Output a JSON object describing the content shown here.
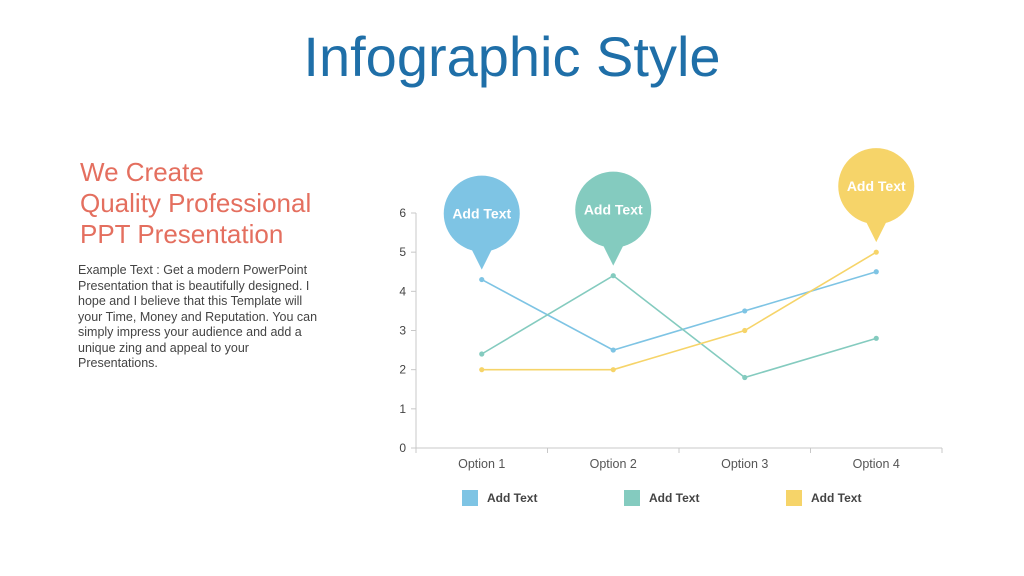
{
  "slide": {
    "title": "Infographic Style",
    "headline_lines": [
      "We Create",
      "Quality Professional",
      "PPT Presentation"
    ],
    "body": "Example Text : Get a modern PowerPoint Presentation that is beautifully designed. I hope and I believe that this Template will your Time, Money and Reputation. You can simply impress your audience and add a unique zing and appeal to your Presentations."
  },
  "chart_data": {
    "type": "line",
    "categories": [
      "Option 1",
      "Option 2",
      "Option 3",
      "Option 4"
    ],
    "ylim": [
      0,
      6
    ],
    "yticks": [
      0,
      1,
      2,
      3,
      4,
      5,
      6
    ],
    "grid": false,
    "legend_position": "bottom",
    "series": [
      {
        "name": "Add Text",
        "color": "#7ec4e4",
        "values": [
          4.3,
          2.5,
          3.5,
          4.5
        ]
      },
      {
        "name": "Add Text",
        "color": "#84cbbf",
        "values": [
          2.4,
          4.4,
          1.8,
          2.8
        ]
      },
      {
        "name": "Add Text",
        "color": "#f6d469",
        "values": [
          2.0,
          2.0,
          3.0,
          5.0
        ]
      }
    ],
    "callouts": [
      {
        "text": "Add Text",
        "color": "#7ec4e4",
        "series": 0,
        "category": 0
      },
      {
        "text": "Add Text",
        "color": "#84cbbf",
        "series": 1,
        "category": 1
      },
      {
        "text": "Add Text",
        "color": "#f6d469",
        "series": 2,
        "category": 3
      }
    ]
  }
}
